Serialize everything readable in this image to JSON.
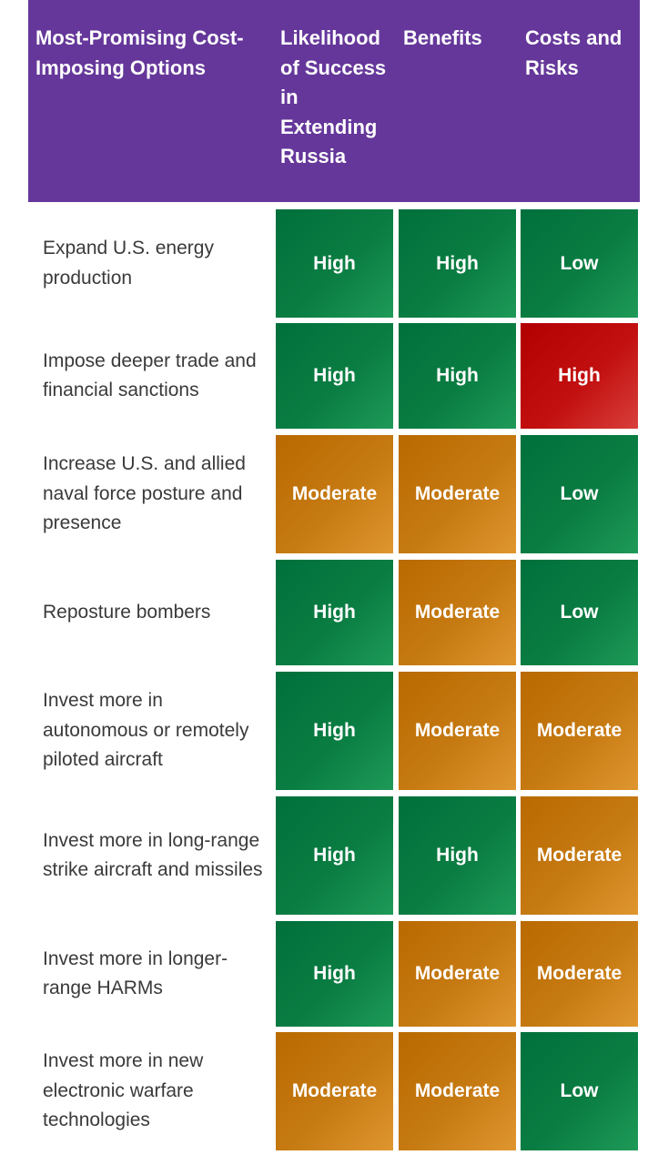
{
  "header": {
    "col0": "Most-Promising Cost-Imposing Options",
    "col1": "Likelihood of Success in Extending Russia",
    "col2": "Benefits",
    "col3": "Costs and Risks"
  },
  "rows": [
    {
      "option": "Expand U.S. energy production",
      "likelihood": "High",
      "benefits": "High",
      "costs": "Low"
    },
    {
      "option": "Impose deeper trade and financial sanctions",
      "likelihood": "High",
      "benefits": "High",
      "costs": "High"
    },
    {
      "option": "Increase U.S. and allied naval force posture and presence",
      "likelihood": "Moderate",
      "benefits": "Moderate",
      "costs": "Low"
    },
    {
      "option": "Reposture bombers",
      "likelihood": "High",
      "benefits": "Moderate",
      "costs": "Low"
    },
    {
      "option": "Invest more in autonomous or remotely piloted aircraft",
      "likelihood": "High",
      "benefits": "Moderate",
      "costs": "Moderate"
    },
    {
      "option": "Invest more in long-range strike aircraft and missiles",
      "likelihood": "High",
      "benefits": "High",
      "costs": "Moderate"
    },
    {
      "option": "Invest more in longer-range HARMs",
      "likelihood": "High",
      "benefits": "Moderate",
      "costs": "Moderate"
    },
    {
      "option": "Invest more in new electronic warfare technologies",
      "likelihood": "Moderate",
      "benefits": "Moderate",
      "costs": "Low"
    }
  ],
  "colors": {
    "header_bg": "#65379a",
    "green": "#00703c",
    "orange": "#b96a00",
    "red": "#b20000"
  }
}
